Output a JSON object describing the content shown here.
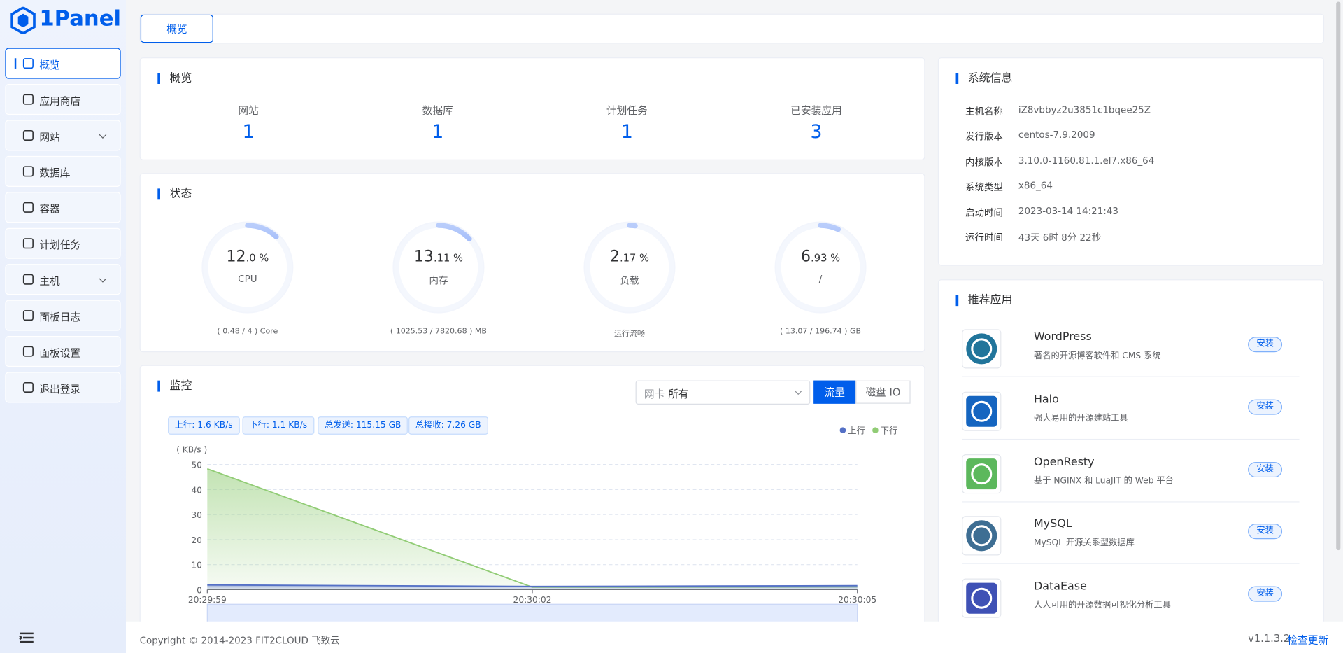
{
  "brand": "1Panel",
  "sidebar": {
    "active_index": 0,
    "items": [
      {
        "label": "概览"
      },
      {
        "label": "应用商店"
      },
      {
        "label": "网站",
        "submenu": true
      },
      {
        "label": "数据库"
      },
      {
        "label": "容器"
      },
      {
        "label": "计划任务"
      },
      {
        "label": "主机",
        "submenu": true
      },
      {
        "label": "面板日志"
      },
      {
        "label": "面板设置"
      },
      {
        "label": "退出登录"
      }
    ]
  },
  "tabs": [
    "概览"
  ],
  "overview": {
    "title": "概览",
    "items": [
      {
        "label": "网站",
        "value": 1
      },
      {
        "label": "数据库",
        "value": 1
      },
      {
        "label": "计划任务",
        "value": 1
      },
      {
        "label": "已安装应用",
        "value": 3
      }
    ]
  },
  "status": {
    "title": "状态",
    "gauges": [
      {
        "percent": 12.0,
        "main": "12",
        "fraction": ".0 %",
        "label": "CPU",
        "detail": "( 0.48 / 4 ) Core"
      },
      {
        "percent": 13.11,
        "main": "13",
        "fraction": ".11 %",
        "label": "内存",
        "detail": "( 1025.53 / 7820.68 ) MB"
      },
      {
        "percent": 2.17,
        "main": "2",
        "fraction": ".17 %",
        "label": "负载",
        "detail": "运行流畅"
      },
      {
        "percent": 6.93,
        "main": "6",
        "fraction": ".93 %",
        "label": "/",
        "detail": "( 13.07 / 196.74 ) GB"
      }
    ]
  },
  "monitor": {
    "title": "监控",
    "nic_label": "网卡",
    "nic_value": "所有",
    "buttons": [
      "流量",
      "磁盘 IO"
    ],
    "active_button": 0,
    "tags": [
      "上行: 1.6 KB/s",
      "下行: 1.1 KB/s",
      "总发送: 115.15 GB",
      "总接收: 7.26 GB"
    ]
  },
  "chart_data": {
    "type": "line",
    "y_label": "( KB/s )",
    "categories": [
      "20:29:59",
      "20:30:02",
      "20:30:05"
    ],
    "series": [
      {
        "name": "上行",
        "color": "#5470c6",
        "values": [
          1.9,
          1.3,
          1.6
        ]
      },
      {
        "name": "下行",
        "color": "#91cc75",
        "values": [
          48.3,
          1.0,
          1.1
        ]
      }
    ],
    "ylim": [
      0,
      50
    ],
    "yticks": [
      0,
      10,
      20,
      30,
      40,
      50
    ],
    "grid": true,
    "area": true
  },
  "system_info": {
    "title": "系统信息",
    "rows": [
      [
        "主机名称",
        "iZ8vbbyz2u3851c1bqee25Z"
      ],
      [
        "发行版本",
        "centos-7.9.2009"
      ],
      [
        "内核版本",
        "3.10.0-1160.81.1.el7.x86_64"
      ],
      [
        "系统类型",
        "x86_64"
      ],
      [
        "启动时间",
        "2023-03-14 14:21:43"
      ],
      [
        "运行时间",
        "43天 6时 8分 22秒"
      ]
    ]
  },
  "recommended": {
    "title": "推荐应用",
    "install": "安装",
    "apps": [
      {
        "name": "WordPress",
        "desc": "著名的开源博客软件和 CMS 系统"
      },
      {
        "name": "Halo",
        "desc": "强大易用的开源建站工具"
      },
      {
        "name": "OpenResty",
        "desc": "基于 NGINX 和 LuaJIT 的 Web 平台"
      },
      {
        "name": "MySQL",
        "desc": "MySQL 开源关系型数据库"
      },
      {
        "name": "DataEase",
        "desc": "人人可用的开源数据可视化分析工具"
      }
    ]
  },
  "footer": {
    "copyright": "Copyright © 2014-2023 FIT2CLOUD 飞致云",
    "version": "v1.1.3.2",
    "check_update": "检查更新"
  }
}
